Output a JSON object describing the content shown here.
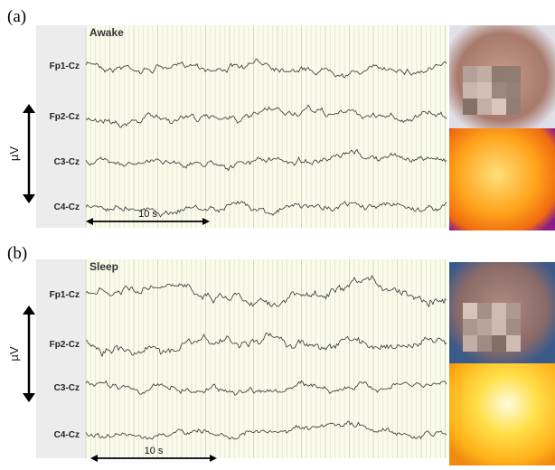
{
  "panels": [
    {
      "label": "(a)",
      "state": "Awake",
      "channels": [
        "Fp1-Cz",
        "Fp2-Cz",
        "C3-Cz",
        "C4-Cz"
      ],
      "time_scale": "10 s",
      "amplitude_unit": "µV"
    },
    {
      "label": "(b)",
      "state": "Sleep",
      "channels": [
        "Fp1-Cz",
        "Fp2-Cz",
        "C3-Cz",
        "C4-Cz"
      ],
      "time_scale": "10 s",
      "amplitude_unit": "µV"
    }
  ]
}
